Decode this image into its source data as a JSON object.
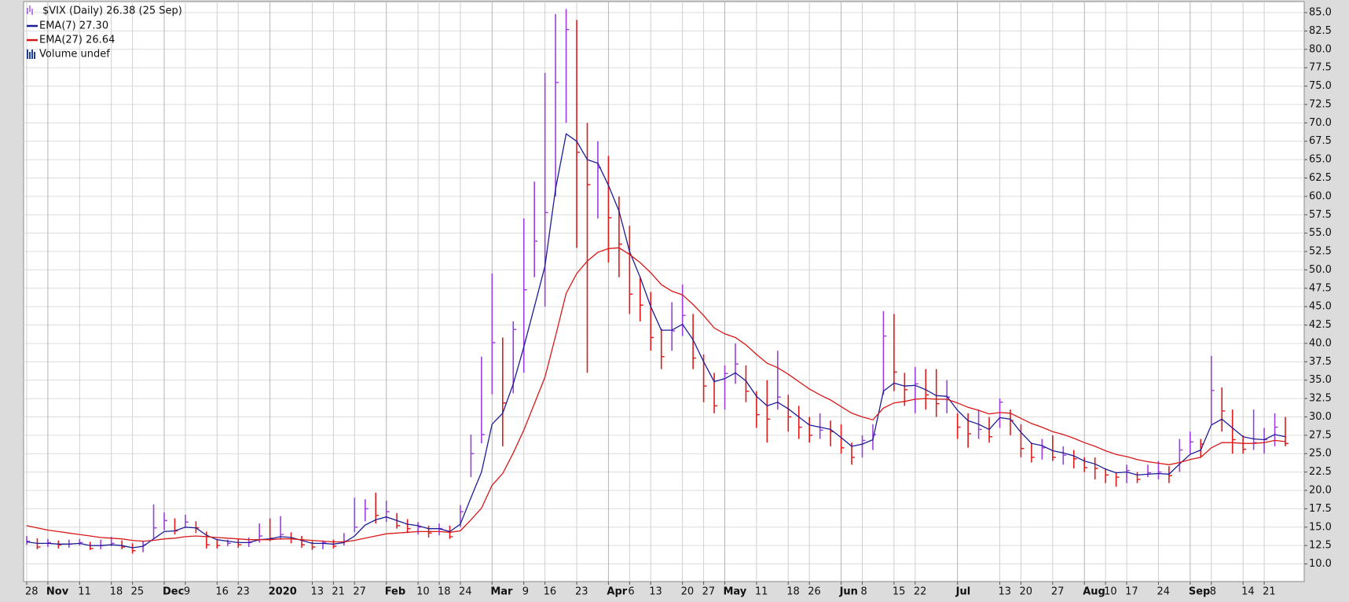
{
  "chart_data": {
    "type": "ohlc",
    "title": "$VIX (Daily) 26.38 (25 Sep)",
    "categories": [
      "28",
      null,
      "Nov",
      null,
      null,
      "11",
      null,
      null,
      "18",
      null,
      "25",
      null,
      null,
      "Dec",
      null,
      "9",
      null,
      null,
      "16",
      null,
      "23",
      null,
      null,
      "2020",
      null,
      null,
      null,
      "13",
      null,
      "21",
      null,
      "27",
      null,
      null,
      "Feb",
      null,
      null,
      "10",
      null,
      "18",
      null,
      "24",
      null,
      null,
      "Mar",
      null,
      null,
      "9",
      null,
      "16",
      null,
      null,
      "23",
      null,
      null,
      "Apr",
      null,
      "6",
      null,
      "13",
      null,
      null,
      "20",
      null,
      "27",
      null,
      "May",
      null,
      null,
      "11",
      null,
      null,
      "18",
      null,
      "26",
      null,
      null,
      "Jun",
      null,
      "8",
      null,
      null,
      "15",
      null,
      "22",
      null,
      null,
      null,
      "Jul",
      null,
      null,
      null,
      "13",
      null,
      "20",
      null,
      null,
      "27",
      null,
      null,
      "Aug",
      null,
      "10",
      null,
      "17",
      null,
      null,
      "24",
      null,
      null,
      "Sep",
      null,
      "8",
      null,
      null,
      "14",
      null,
      "21",
      null,
      null
    ],
    "high": [
      13.8,
      13.5,
      13.4,
      13.2,
      13.3,
      13.4,
      13.0,
      13.3,
      13.7,
      13.2,
      12.8,
      13.1,
      18.1,
      17.0,
      16.2,
      16.7,
      15.8,
      14.4,
      13.4,
      13.3,
      13.4,
      13.6,
      15.5,
      16.2,
      16.5,
      14.3,
      13.8,
      13.1,
      13.2,
      13.3,
      14.2,
      19.0,
      18.8,
      19.7,
      18.6,
      16.9,
      16.1,
      15.7,
      15.2,
      15.5,
      15.2,
      18.0,
      27.6,
      38.2,
      49.5,
      40.8,
      43.0,
      57.0,
      62.0,
      76.8,
      84.8,
      85.5,
      84.0,
      70.0,
      67.5,
      65.5,
      60.0,
      56.0,
      49.0,
      47.0,
      42.0,
      45.6,
      48.0,
      44.0,
      38.5,
      36.0,
      37.0,
      40.0,
      37.0,
      33.5,
      35.0,
      39.0,
      33.0,
      31.5,
      30.0,
      30.5,
      29.5,
      29.0,
      26.5,
      27.5,
      29.0,
      44.4,
      44.0,
      36.0,
      36.8,
      36.5,
      36.5,
      35.0,
      30.5,
      30.5,
      31.0,
      30.0,
      32.5,
      31.0,
      29.0,
      26.5,
      27.0,
      27.5,
      26.0,
      25.5,
      24.5,
      24.5,
      23.0,
      22.5,
      23.5,
      22.5,
      23.5,
      24.0,
      23.3,
      27.0,
      28.0,
      27.0,
      38.3,
      34.0,
      31.0,
      27.5,
      31.0,
      28.5,
      30.5,
      30.0
    ],
    "low": [
      12.6,
      12.0,
      12.3,
      12.1,
      12.2,
      12.5,
      11.9,
      12.0,
      12.4,
      12.0,
      11.4,
      11.6,
      13.5,
      14.6,
      14.0,
      14.9,
      14.2,
      12.1,
      12.1,
      12.4,
      12.2,
      12.3,
      12.9,
      13.1,
      13.3,
      12.8,
      12.2,
      11.9,
      12.0,
      12.1,
      12.5,
      14.3,
      15.8,
      15.5,
      15.7,
      14.8,
      14.2,
      14.0,
      13.6,
      13.9,
      13.4,
      15.0,
      21.8,
      26.4,
      33.1,
      26.0,
      33.2,
      36.0,
      49.0,
      45.0,
      60.0,
      70.0,
      53.0,
      36.0,
      57.0,
      51.0,
      49.0,
      44.0,
      43.0,
      39.0,
      36.5,
      39.0,
      41.0,
      36.5,
      32.0,
      30.5,
      31.0,
      34.5,
      32.0,
      28.5,
      26.5,
      31.0,
      28.0,
      27.0,
      26.5,
      27.0,
      26.0,
      25.0,
      23.5,
      24.5,
      25.5,
      33.0,
      33.5,
      31.5,
      30.5,
      31.0,
      30.0,
      30.5,
      27.0,
      25.8,
      27.0,
      26.5,
      28.5,
      27.5,
      24.5,
      23.8,
      24.2,
      24.0,
      23.5,
      23.0,
      22.5,
      21.5,
      21.0,
      20.5,
      21.0,
      21.0,
      21.8,
      21.5,
      21.0,
      22.5,
      25.0,
      24.5,
      29.0,
      28.0,
      25.0,
      25.0,
      25.5,
      25.0,
      26.0,
      26.0
    ],
    "close": [
      13.1,
      12.3,
      12.9,
      12.6,
      12.7,
      12.9,
      12.1,
      12.5,
      12.8,
      12.3,
      11.8,
      12.6,
      14.9,
      15.9,
      14.5,
      15.7,
      14.9,
      12.6,
      12.5,
      12.8,
      12.6,
      12.9,
      13.8,
      13.5,
      14.0,
      13.4,
      12.6,
      12.3,
      12.9,
      12.4,
      13.1,
      15.0,
      17.5,
      16.6,
      17.1,
      15.2,
      14.8,
      15.0,
      14.2,
      14.8,
      13.7,
      17.1,
      25.0,
      27.6,
      40.1,
      31.9,
      41.9,
      47.3,
      53.9,
      57.8,
      75.5,
      82.7,
      66.0,
      61.6,
      63.9,
      57.1,
      53.5,
      46.7,
      45.2,
      40.8,
      38.2,
      41.7,
      43.8,
      38.0,
      34.2,
      31.5,
      35.9,
      37.2,
      33.5,
      30.3,
      29.7,
      32.7,
      30.0,
      28.6,
      27.5,
      28.2,
      28.0,
      25.8,
      24.5,
      26.8,
      27.6,
      41.0,
      36.1,
      33.7,
      34.5,
      33.0,
      31.8,
      32.7,
      28.6,
      27.7,
      28.3,
      27.3,
      32.0,
      29.5,
      25.7,
      24.5,
      25.8,
      24.5,
      24.8,
      24.3,
      23.1,
      23.0,
      22.1,
      21.8,
      22.7,
      21.5,
      22.4,
      22.5,
      22.0,
      25.5,
      26.6,
      26.3,
      33.6,
      30.8,
      26.9,
      25.6,
      26.5,
      26.9,
      28.6,
      26.38
    ],
    "up_color": "#9a3ee0",
    "down_color": "#e01a1a",
    "series": [
      {
        "name": "EMA(7) 27.30",
        "color": "#1c1c96",
        "values": [
          13.0,
          12.8,
          12.8,
          12.7,
          12.7,
          12.8,
          12.5,
          12.5,
          12.6,
          12.5,
          12.2,
          12.4,
          13.4,
          14.4,
          14.5,
          15.0,
          14.9,
          13.9,
          13.3,
          13.1,
          12.9,
          12.9,
          13.3,
          13.4,
          13.7,
          13.6,
          13.2,
          12.8,
          12.8,
          12.7,
          12.9,
          13.8,
          15.3,
          16.0,
          16.4,
          15.9,
          15.4,
          15.2,
          14.8,
          14.8,
          14.4,
          15.4,
          19.0,
          22.5,
          29.0,
          30.5,
          34.5,
          39.5,
          45.0,
          50.5,
          61.0,
          68.5,
          67.5,
          65.0,
          64.5,
          61.5,
          58.0,
          52.5,
          49.0,
          45.0,
          41.8,
          41.8,
          42.6,
          40.5,
          37.5,
          34.8,
          35.2,
          36.0,
          34.9,
          32.8,
          31.5,
          32.0,
          31.1,
          30.0,
          28.9,
          28.6,
          28.3,
          27.2,
          26.0,
          26.3,
          26.9,
          33.5,
          34.6,
          34.2,
          34.3,
          33.7,
          32.9,
          32.8,
          30.9,
          29.5,
          29.0,
          28.3,
          29.9,
          29.7,
          27.9,
          26.4,
          26.1,
          25.4,
          25.1,
          24.7,
          24.0,
          23.6,
          22.9,
          22.4,
          22.5,
          22.1,
          22.2,
          22.3,
          22.2,
          23.6,
          24.9,
          25.5,
          28.9,
          29.7,
          28.5,
          27.3,
          27.0,
          26.9,
          27.6,
          27.3
        ]
      },
      {
        "name": "EMA(27) 26.64",
        "color": "#d81818",
        "values": [
          15.2,
          14.9,
          14.6,
          14.4,
          14.2,
          14.0,
          13.8,
          13.6,
          13.5,
          13.4,
          13.2,
          13.1,
          13.2,
          13.4,
          13.5,
          13.7,
          13.8,
          13.7,
          13.6,
          13.5,
          13.4,
          13.3,
          13.3,
          13.3,
          13.4,
          13.4,
          13.3,
          13.2,
          13.1,
          13.0,
          13.0,
          13.2,
          13.5,
          13.8,
          14.1,
          14.2,
          14.3,
          14.4,
          14.4,
          14.4,
          14.3,
          14.5,
          16.0,
          17.6,
          20.7,
          22.3,
          25.1,
          28.2,
          31.8,
          35.4,
          41.0,
          46.8,
          49.5,
          51.2,
          52.4,
          52.9,
          53.0,
          52.1,
          51.0,
          49.6,
          48.0,
          47.1,
          46.6,
          45.3,
          43.8,
          42.1,
          41.3,
          40.8,
          39.8,
          38.5,
          37.3,
          36.7,
          35.8,
          34.8,
          33.8,
          33.0,
          32.3,
          31.4,
          30.5,
          30.0,
          29.6,
          31.2,
          31.9,
          32.1,
          32.4,
          32.5,
          32.4,
          32.4,
          31.9,
          31.3,
          30.9,
          30.4,
          30.6,
          30.5,
          29.8,
          29.1,
          28.6,
          28.0,
          27.6,
          27.1,
          26.5,
          26.0,
          25.4,
          24.9,
          24.6,
          24.2,
          23.9,
          23.7,
          23.5,
          23.8,
          24.2,
          24.5,
          25.8,
          26.5,
          26.5,
          26.4,
          26.4,
          26.5,
          26.8,
          26.64
        ]
      }
    ],
    "volume_legend": "Volume undef",
    "volume_color": "#1f3f9a",
    "legend": "top-left",
    "grid": true,
    "ylim": [
      7.6,
      86.5
    ],
    "yticks": [
      {
        "value": 10,
        "label": "10.0"
      },
      {
        "value": 12.5,
        "label": "12.5"
      },
      {
        "value": 15,
        "label": "15.0"
      },
      {
        "value": 17.5,
        "label": "17.5"
      },
      {
        "value": 20,
        "label": "20.0"
      },
      {
        "value": 22.5,
        "label": "22.5"
      },
      {
        "value": 25,
        "label": "25.0"
      },
      {
        "value": 27.5,
        "label": "27.5"
      },
      {
        "value": 30,
        "label": "30.0"
      },
      {
        "value": 32.5,
        "label": "32.5"
      },
      {
        "value": 35,
        "label": "35.0"
      },
      {
        "value": 37.5,
        "label": "37.5"
      },
      {
        "value": 40,
        "label": "40.0"
      },
      {
        "value": 42.5,
        "label": "42.5"
      },
      {
        "value": 45,
        "label": "45.0"
      },
      {
        "value": 47.5,
        "label": "47.5"
      },
      {
        "value": 50,
        "label": "50.0"
      },
      {
        "value": 52.5,
        "label": "52.5"
      },
      {
        "value": 55,
        "label": "55.0"
      },
      {
        "value": 57.5,
        "label": "57.5"
      },
      {
        "value": 60,
        "label": "60.0"
      },
      {
        "value": 62.5,
        "label": "62.5"
      },
      {
        "value": 65,
        "label": "65.0"
      },
      {
        "value": 67.5,
        "label": "67.5"
      },
      {
        "value": 70,
        "label": "70.0"
      },
      {
        "value": 72.5,
        "label": "72.5"
      },
      {
        "value": 75,
        "label": "75.0"
      },
      {
        "value": 77.5,
        "label": "77.5"
      },
      {
        "value": 80,
        "label": "80.0"
      },
      {
        "value": 82.5,
        "label": "82.5"
      },
      {
        "value": 85,
        "label": "85.0"
      }
    ]
  }
}
